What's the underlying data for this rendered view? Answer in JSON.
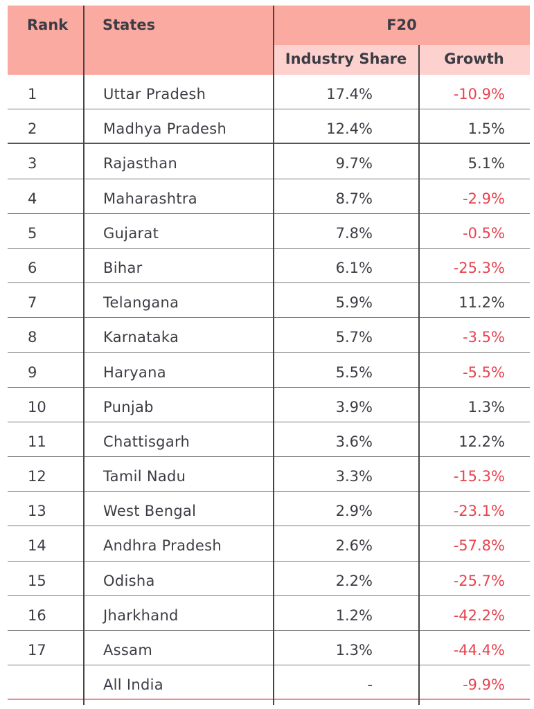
{
  "table": {
    "headers": {
      "rank": "Rank",
      "states": "States",
      "group": "F20",
      "industry_share": "Industry Share",
      "growth": "Growth"
    },
    "rows": [
      {
        "rank": "1",
        "state": "Uttar Pradesh",
        "share": "17.4%",
        "growth": "-10.9%",
        "negative": true
      },
      {
        "rank": "2",
        "state": "Madhya Pradesh",
        "share": "12.4%",
        "growth": "1.5%",
        "negative": false
      },
      {
        "rank": "3",
        "state": "Rajasthan",
        "share": "9.7%",
        "growth": "5.1%",
        "negative": false
      },
      {
        "rank": "4",
        "state": "Maharashtra",
        "share": "8.7%",
        "growth": "-2.9%",
        "negative": true
      },
      {
        "rank": "5",
        "state": "Gujarat",
        "share": "7.8%",
        "growth": "-0.5%",
        "negative": true
      },
      {
        "rank": "6",
        "state": "Bihar",
        "share": "6.1%",
        "growth": "-25.3%",
        "negative": true
      },
      {
        "rank": "7",
        "state": "Telangana",
        "share": "5.9%",
        "growth": "11.2%",
        "negative": false
      },
      {
        "rank": "8",
        "state": "Karnataka",
        "share": "5.7%",
        "growth": "-3.5%",
        "negative": true
      },
      {
        "rank": "9",
        "state": "Haryana",
        "share": "5.5%",
        "growth": "-5.5%",
        "negative": true
      },
      {
        "rank": "10",
        "state": "Punjab",
        "share": "3.9%",
        "growth": "1.3%",
        "negative": false
      },
      {
        "rank": "11",
        "state": "Chattisgarh",
        "share": "3.6%",
        "growth": "12.2%",
        "negative": false
      },
      {
        "rank": "12",
        "state": "Tamil Nadu",
        "share": "3.3%",
        "growth": "-15.3%",
        "negative": true
      },
      {
        "rank": "13",
        "state": "West Bengal",
        "share": "2.9%",
        "growth": "-23.1%",
        "negative": true
      },
      {
        "rank": "14",
        "state": "Andhra Pradesh",
        "share": "2.6%",
        "growth": "-57.8%",
        "negative": true
      },
      {
        "rank": "15",
        "state": "Odisha",
        "share": "2.2%",
        "growth": "-25.7%",
        "negative": true
      },
      {
        "rank": "16",
        "state": "Jharkhand",
        "share": "1.2%",
        "growth": "-42.2%",
        "negative": true
      },
      {
        "rank": "17",
        "state": "Assam",
        "share": "1.3%",
        "growth": "-44.4%",
        "negative": true
      },
      {
        "rank": "",
        "state": "All India",
        "share": "-",
        "growth": "-9.9%",
        "negative": true
      }
    ]
  },
  "colors": {
    "header_bg": "#fbaaa2",
    "subheader_bg": "#fdd2ce",
    "negative_text": "#e8424e",
    "text": "#3c3c44",
    "bottom_rule": "#e88a92"
  }
}
